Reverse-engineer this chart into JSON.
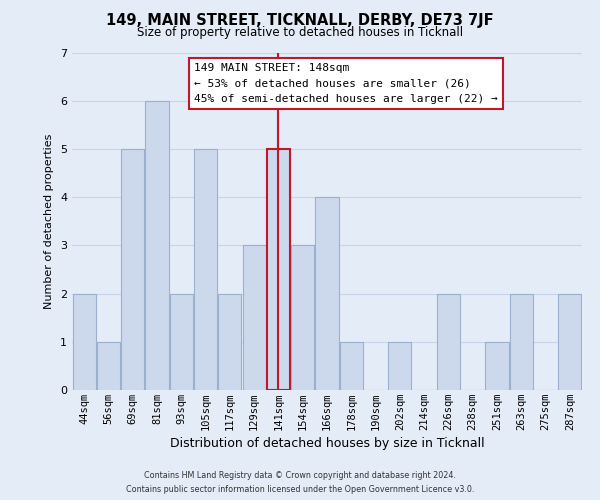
{
  "title_line1": "149, MAIN STREET, TICKNALL, DERBY, DE73 7JF",
  "subtitle": "Size of property relative to detached houses in Ticknall",
  "xlabel": "Distribution of detached houses by size in Ticknall",
  "ylabel": "Number of detached properties",
  "bar_labels": [
    "44sqm",
    "56sqm",
    "69sqm",
    "81sqm",
    "93sqm",
    "105sqm",
    "117sqm",
    "129sqm",
    "141sqm",
    "154sqm",
    "166sqm",
    "178sqm",
    "190sqm",
    "202sqm",
    "214sqm",
    "226sqm",
    "238sqm",
    "251sqm",
    "263sqm",
    "275sqm",
    "287sqm"
  ],
  "bar_values": [
    2,
    1,
    5,
    6,
    2,
    5,
    2,
    3,
    5,
    3,
    4,
    1,
    0,
    1,
    0,
    2,
    0,
    1,
    2,
    0,
    2
  ],
  "bar_color": "#ccd9ed",
  "bar_edge_color": "#9ab0cc",
  "highlight_bar_index": 8,
  "highlight_bar_edge_color": "#c0172a",
  "vline_x": 8,
  "vline_color": "#c0172a",
  "ylim": [
    0,
    7
  ],
  "yticks": [
    0,
    1,
    2,
    3,
    4,
    5,
    6,
    7
  ],
  "annotation_title": "149 MAIN STREET: 148sqm",
  "annotation_line1": "← 53% of detached houses are smaller (26)",
  "annotation_line2": "45% of semi-detached houses are larger (22) →",
  "annotation_box_color": "#ffffff",
  "annotation_box_edge": "#c0172a",
  "footer_line1": "Contains HM Land Registry data © Crown copyright and database right 2024.",
  "footer_line2": "Contains public sector information licensed under the Open Government Licence v3.0.",
  "grid_color": "#c8d4e8",
  "background_color": "#e4ecf7"
}
